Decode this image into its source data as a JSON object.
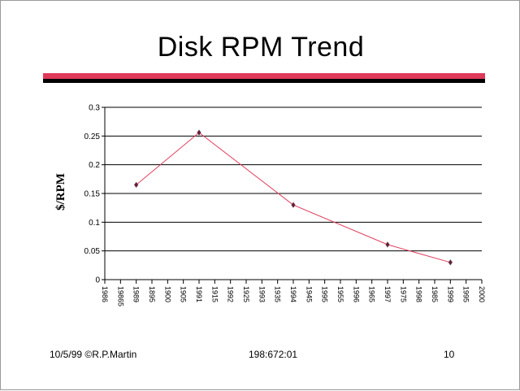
{
  "slide": {
    "title": "Disk RPM Trend",
    "footer_left": "10/5/99 ©R.P.Martin",
    "footer_center": "198:672:01",
    "footer_right": "10"
  },
  "chart_data": {
    "type": "line",
    "title": "Disk RPM Trend",
    "xlabel": "",
    "ylabel": "$/RPM",
    "ylim": [
      0,
      0.3
    ],
    "y_ticks": [
      "0",
      "0.05",
      "0.1",
      "0.15",
      "0.2",
      "0.25",
      "0.3"
    ],
    "x_tick_labels": [
      "1986",
      "19865",
      "1989",
      "1895",
      "1900",
      "1905",
      "1991",
      "1915",
      "1992",
      "1925",
      "1993",
      "1935",
      "1994",
      "1945",
      "1995",
      "1955",
      "1996",
      "1965",
      "1997",
      "1975",
      "1998",
      "1985",
      "1999",
      "1995",
      "2000"
    ],
    "grid": true,
    "legend": "none",
    "series_color": "#e0405e",
    "marker_color": "#6a1a3a",
    "series": [
      {
        "x_labels": [
          "1989",
          "1991",
          "1994",
          "1997",
          "1999"
        ],
        "values": [
          0.165,
          0.256,
          0.13,
          0.061,
          0.03
        ]
      }
    ]
  }
}
